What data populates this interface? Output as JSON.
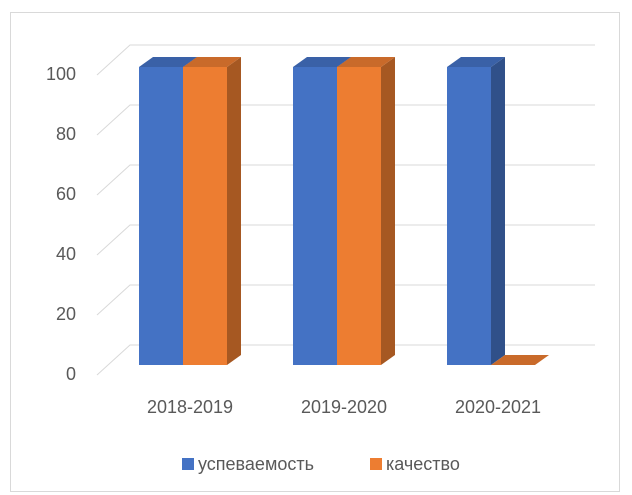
{
  "chart_data": {
    "type": "bar3d",
    "categories": [
      "2018-2019",
      "2019-2020",
      "2020-2021"
    ],
    "series": [
      {
        "name": "успеваемость",
        "color": "#4472c4",
        "values": [
          100,
          100,
          100
        ]
      },
      {
        "name": "качество",
        "color": "#ed7d31",
        "values": [
          100,
          100,
          0
        ]
      }
    ],
    "ylim": [
      0,
      100
    ],
    "yticks": [
      0,
      20,
      40,
      60,
      80,
      100
    ],
    "grid": true,
    "legend": "bottom"
  }
}
